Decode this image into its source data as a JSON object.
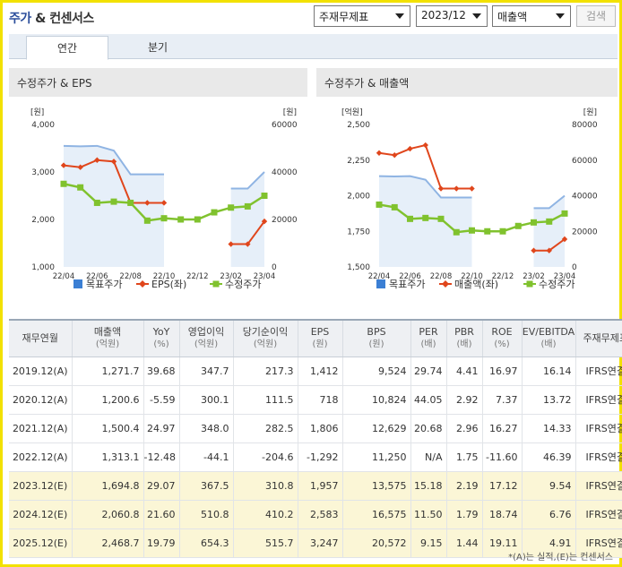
{
  "header": {
    "title_highlight": "주가",
    "title_rest": "& 컨센서스",
    "select_type": "주재무제표",
    "select_period": "2023/12",
    "select_metric": "매출액",
    "search_label": "검색"
  },
  "tabs": [
    {
      "label": "연간",
      "active": true
    },
    {
      "label": "분기",
      "active": false
    }
  ],
  "chart_left": {
    "title": "수정주가 & EPS",
    "left_unit": "[원]",
    "right_unit": "[원]",
    "left_ticks": [
      "4,000",
      "3,000",
      "2,000",
      "1,000"
    ],
    "right_ticks": [
      "60000",
      "40000",
      "20000",
      "0"
    ],
    "x_ticks": [
      "22/04",
      "22/06",
      "22/08",
      "22/10",
      "22/12",
      "23/02",
      "23/04"
    ],
    "legend": [
      "목표주가",
      "EPS(좌)",
      "수정주가"
    ]
  },
  "chart_right": {
    "title": "수정주가 & 매출액",
    "left_unit": "[억원]",
    "right_unit": "[원]",
    "left_ticks": [
      "2,500",
      "2,250",
      "2,000",
      "1,750",
      "1,500"
    ],
    "right_ticks": [
      "80000",
      "60000",
      "40000",
      "20000",
      "0"
    ],
    "x_ticks": [
      "22/04",
      "22/06",
      "22/08",
      "22/10",
      "22/12",
      "23/02",
      "23/04"
    ],
    "legend": [
      "목표주가",
      "매출액(좌)",
      "수정주가"
    ]
  },
  "chart_data": [
    {
      "type": "line",
      "title": "수정주가 & EPS",
      "x": [
        "22/04",
        "22/05",
        "22/06",
        "22/07",
        "22/08",
        "22/09",
        "22/10",
        "22/11",
        "22/12",
        "23/01",
        "23/02",
        "23/03",
        "23/04"
      ],
      "ylim_left": [
        1000,
        4000
      ],
      "ylim_right": [
        0,
        60000
      ],
      "series": [
        {
          "name": "목표주가",
          "axis": "right",
          "color": "#8fb4e3",
          "values": [
            51000,
            50800,
            51000,
            49000,
            39000,
            39000,
            39000,
            null,
            null,
            null,
            33000,
            33000,
            40000
          ]
        },
        {
          "name": "EPS(좌)",
          "axis": "left",
          "color": "#e0461c",
          "values": [
            3140,
            3100,
            3250,
            3220,
            2350,
            2350,
            2350,
            null,
            null,
            null,
            1480,
            1480,
            1960
          ]
        },
        {
          "name": "수정주가",
          "axis": "right",
          "color": "#80c22e",
          "values": [
            35000,
            33500,
            27000,
            27500,
            27000,
            19500,
            20500,
            20000,
            20000,
            23000,
            25000,
            25500,
            30000
          ]
        }
      ]
    },
    {
      "type": "line",
      "title": "수정주가 & 매출액",
      "x": [
        "22/04",
        "22/05",
        "22/06",
        "22/07",
        "22/08",
        "22/09",
        "22/10",
        "22/11",
        "22/12",
        "23/01",
        "23/02",
        "23/03",
        "23/04"
      ],
      "ylim_left": [
        1500,
        2500
      ],
      "ylim_right": [
        0,
        80000
      ],
      "series": [
        {
          "name": "목표주가",
          "axis": "right",
          "color": "#8fb4e3",
          "values": [
            51000,
            50800,
            51000,
            49000,
            39000,
            39000,
            39000,
            null,
            null,
            null,
            33000,
            33000,
            40000
          ]
        },
        {
          "name": "매출액(좌)",
          "axis": "left",
          "color": "#e0461c",
          "values": [
            2300,
            2285,
            2330,
            2355,
            2050,
            2050,
            2050,
            null,
            null,
            null,
            1615,
            1615,
            1695
          ]
        },
        {
          "name": "수정주가",
          "axis": "right",
          "color": "#80c22e",
          "values": [
            35000,
            33500,
            27000,
            27500,
            27000,
            19500,
            20500,
            20000,
            20000,
            23000,
            25000,
            25500,
            30000
          ]
        }
      ]
    }
  ],
  "table": {
    "headers": [
      {
        "label": "재무연월",
        "unit": ""
      },
      {
        "label": "매출액",
        "unit": "(억원)"
      },
      {
        "label": "YoY",
        "unit": "(%)"
      },
      {
        "label": "영업이익",
        "unit": "(억원)"
      },
      {
        "label": "당기순이익",
        "unit": "(억원)"
      },
      {
        "label": "EPS",
        "unit": "(원)"
      },
      {
        "label": "BPS",
        "unit": "(원)"
      },
      {
        "label": "PER",
        "unit": "(배)"
      },
      {
        "label": "PBR",
        "unit": "(배)"
      },
      {
        "label": "ROE",
        "unit": "(%)"
      },
      {
        "label": "EV/EBITDA",
        "unit": "(배)"
      },
      {
        "label": "주재무제표",
        "unit": ""
      }
    ],
    "rows": [
      {
        "est": false,
        "cells": [
          "2019.12(A)",
          "1,271.7",
          "39.68",
          "347.7",
          "217.3",
          "1,412",
          "9,524",
          "29.74",
          "4.41",
          "16.97",
          "16.14",
          "IFRS연결"
        ]
      },
      {
        "est": false,
        "cells": [
          "2020.12(A)",
          "1,200.6",
          "-5.59",
          "300.1",
          "111.5",
          "718",
          "10,824",
          "44.05",
          "2.92",
          "7.37",
          "13.72",
          "IFRS연결"
        ]
      },
      {
        "est": false,
        "cells": [
          "2021.12(A)",
          "1,500.4",
          "24.97",
          "348.0",
          "282.5",
          "1,806",
          "12,629",
          "20.68",
          "2.96",
          "16.27",
          "14.33",
          "IFRS연결"
        ]
      },
      {
        "est": false,
        "cells": [
          "2022.12(A)",
          "1,313.1",
          "-12.48",
          "-44.1",
          "-204.6",
          "-1,292",
          "11,250",
          "N/A",
          "1.75",
          "-11.60",
          "46.39",
          "IFRS연결"
        ]
      },
      {
        "est": true,
        "cells": [
          "2023.12(E)",
          "1,694.8",
          "29.07",
          "367.5",
          "310.8",
          "1,957",
          "13,575",
          "15.18",
          "2.19",
          "17.12",
          "9.54",
          "IFRS연결"
        ]
      },
      {
        "est": true,
        "cells": [
          "2024.12(E)",
          "2,060.8",
          "21.60",
          "510.8",
          "410.2",
          "2,583",
          "16,575",
          "11.50",
          "1.79",
          "18.74",
          "6.76",
          "IFRS연결"
        ]
      },
      {
        "est": true,
        "cells": [
          "2025.12(E)",
          "2,468.7",
          "19.79",
          "654.3",
          "515.7",
          "3,247",
          "20,572",
          "9.15",
          "1.44",
          "19.11",
          "4.91",
          "IFRS연결"
        ]
      }
    ]
  },
  "footnote": "*(A)는 실적,(E)는 컨센서스"
}
